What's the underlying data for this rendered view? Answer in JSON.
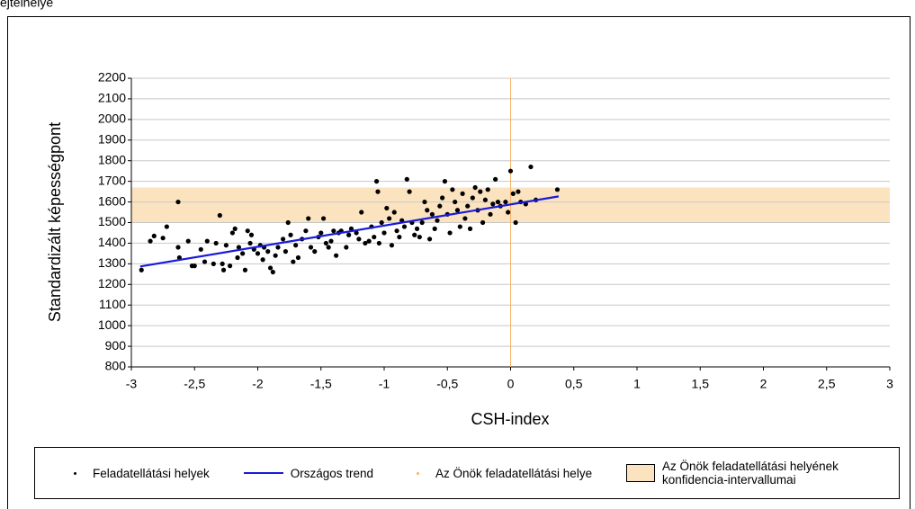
{
  "header": "ejtelhelye",
  "chart_data": {
    "type": "scatter",
    "y_label": "Standardizált képességpont",
    "x_label": "CSH-index",
    "xlim": [
      -3,
      3
    ],
    "ylim": [
      800,
      2200
    ],
    "xticks": [
      -3,
      {
        "value": -2.5,
        "label": "-2,5"
      },
      -2,
      {
        "value": -1.5,
        "label": "-1,5"
      },
      -1,
      {
        "value": -0.5,
        "label": "-0,5"
      },
      0,
      {
        "value": 0.5,
        "label": "0,5"
      },
      1,
      {
        "value": 1.5,
        "label": "1,5"
      },
      2,
      {
        "value": 2.5,
        "label": "2,5"
      },
      3
    ],
    "yticks": [
      800,
      900,
      1000,
      1100,
      1200,
      1300,
      1400,
      1500,
      1600,
      1700,
      1800,
      1900,
      2000,
      2100,
      2200
    ],
    "grid": true,
    "series": [
      {
        "name": "Feladatellátási helyek",
        "type": "scatter",
        "color": "#000000",
        "x": [
          -2.92,
          -2.85,
          -2.82,
          -2.75,
          -2.72,
          -2.63,
          -2.63,
          -2.62,
          -2.55,
          -2.52,
          -2.5,
          -2.45,
          -2.42,
          -2.4,
          -2.35,
          -2.33,
          -2.3,
          -2.28,
          -2.27,
          -2.25,
          -2.22,
          -2.2,
          -2.18,
          -2.16,
          -2.15,
          -2.12,
          -2.1,
          -2.08,
          -2.06,
          -2.05,
          -2.03,
          -2.0,
          -1.98,
          -1.96,
          -1.95,
          -1.92,
          -1.9,
          -1.88,
          -1.86,
          -1.84,
          -1.8,
          -1.78,
          -1.76,
          -1.74,
          -1.72,
          -1.7,
          -1.68,
          -1.65,
          -1.62,
          -1.6,
          -1.58,
          -1.55,
          -1.52,
          -1.5,
          -1.48,
          -1.46,
          -1.44,
          -1.42,
          -1.4,
          -1.38,
          -1.36,
          -1.34,
          -1.3,
          -1.28,
          -1.26,
          -1.22,
          -1.2,
          -1.18,
          -1.15,
          -1.12,
          -1.1,
          -1.08,
          -1.06,
          -1.05,
          -1.04,
          -1.02,
          -1.0,
          -0.98,
          -0.96,
          -0.94,
          -0.92,
          -0.9,
          -0.88,
          -0.86,
          -0.84,
          -0.82,
          -0.8,
          -0.78,
          -0.76,
          -0.74,
          -0.72,
          -0.7,
          -0.68,
          -0.66,
          -0.64,
          -0.62,
          -0.6,
          -0.58,
          -0.56,
          -0.54,
          -0.52,
          -0.5,
          -0.48,
          -0.46,
          -0.44,
          -0.42,
          -0.4,
          -0.38,
          -0.36,
          -0.34,
          -0.32,
          -0.3,
          -0.28,
          -0.26,
          -0.24,
          -0.22,
          -0.2,
          -0.18,
          -0.16,
          -0.14,
          -0.12,
          -0.1,
          -0.08,
          -0.04,
          -0.02,
          0.0,
          0.02,
          0.04,
          0.06,
          0.08,
          0.12,
          0.16,
          0.2,
          0.37
        ],
        "y": [
          1270,
          1410,
          1435,
          1425,
          1480,
          1600,
          1380,
          1330,
          1410,
          1290,
          1290,
          1370,
          1310,
          1410,
          1300,
          1400,
          1535,
          1300,
          1270,
          1390,
          1290,
          1450,
          1470,
          1330,
          1380,
          1350,
          1270,
          1460,
          1400,
          1440,
          1370,
          1350,
          1390,
          1320,
          1380,
          1360,
          1280,
          1260,
          1340,
          1380,
          1420,
          1360,
          1500,
          1440,
          1310,
          1390,
          1330,
          1420,
          1460,
          1520,
          1380,
          1360,
          1430,
          1450,
          1520,
          1400,
          1380,
          1410,
          1460,
          1340,
          1450,
          1460,
          1380,
          1440,
          1470,
          1450,
          1420,
          1550,
          1400,
          1410,
          1480,
          1430,
          1700,
          1650,
          1400,
          1500,
          1450,
          1570,
          1520,
          1390,
          1550,
          1460,
          1430,
          1510,
          1480,
          1710,
          1650,
          1500,
          1440,
          1470,
          1430,
          1500,
          1600,
          1560,
          1420,
          1540,
          1470,
          1510,
          1580,
          1620,
          1700,
          1540,
          1450,
          1660,
          1600,
          1560,
          1480,
          1640,
          1520,
          1580,
          1470,
          1620,
          1670,
          1560,
          1650,
          1500,
          1610,
          1660,
          1540,
          1590,
          1710,
          1600,
          1580,
          1600,
          1550,
          1750,
          1640,
          1500,
          1650,
          1600,
          1590,
          1770,
          1610,
          1660
        ]
      },
      {
        "name": "Országos trend",
        "type": "line",
        "color": "#1a1ad8",
        "x": [
          -2.93,
          0.38
        ],
        "y": [
          1287,
          1627
        ]
      },
      {
        "name": "Az Önök feladatellátási helye",
        "type": "vline",
        "color": "#f7b36b",
        "x": 0
      },
      {
        "name": "Az Önök feladatellátási helyének konfidencia-intervallumai",
        "type": "band",
        "color": "#fbe3c0",
        "low": 1500,
        "high": 1670
      }
    ]
  }
}
